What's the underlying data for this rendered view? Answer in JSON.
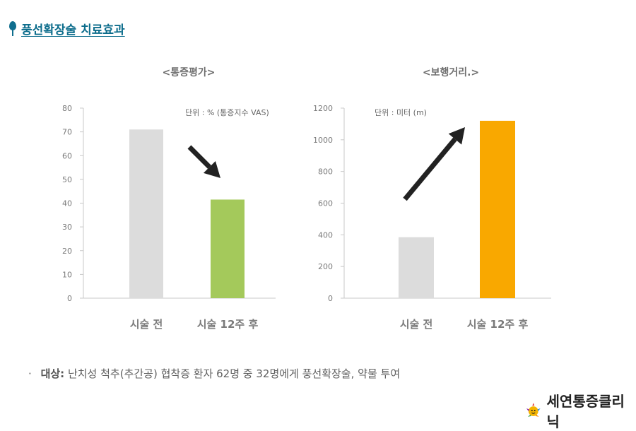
{
  "header": {
    "title": "풍선확장술 치료효과",
    "pin_color": "#0d6d8c"
  },
  "chart_data": [
    {
      "type": "bar",
      "title": "<통증평가>",
      "unit_note": "단위 : % (통증지수 VAS)",
      "categories": [
        "시술 전",
        "시술 12주 후"
      ],
      "values": [
        71,
        41.5
      ],
      "colors": [
        "#dcdcdc",
        "#a4c95b"
      ],
      "ylim": [
        0,
        80
      ],
      "yticks": [
        0,
        10,
        20,
        30,
        40,
        50,
        60,
        70,
        80
      ],
      "trend": "down",
      "grid": false
    },
    {
      "type": "bar",
      "title": "<보행거리.>",
      "unit_note": "단위 : 미터 (m)",
      "categories": [
        "시술 전",
        "시술 12주 후"
      ],
      "values": [
        385,
        1120
      ],
      "colors": [
        "#dcdcdc",
        "#f9a800"
      ],
      "ylim": [
        0,
        1200
      ],
      "yticks": [
        0,
        200,
        400,
        600,
        800,
        1000,
        1200
      ],
      "trend": "up",
      "grid": false
    }
  ],
  "footnote": {
    "bullet": "·",
    "lead": "대상:",
    "text": "난치성 척추(추간공) 협착증 환자 62명 중 32명에게 풍선확장술, 약물 투여"
  },
  "logo": {
    "text": "세연통증클리닉"
  }
}
